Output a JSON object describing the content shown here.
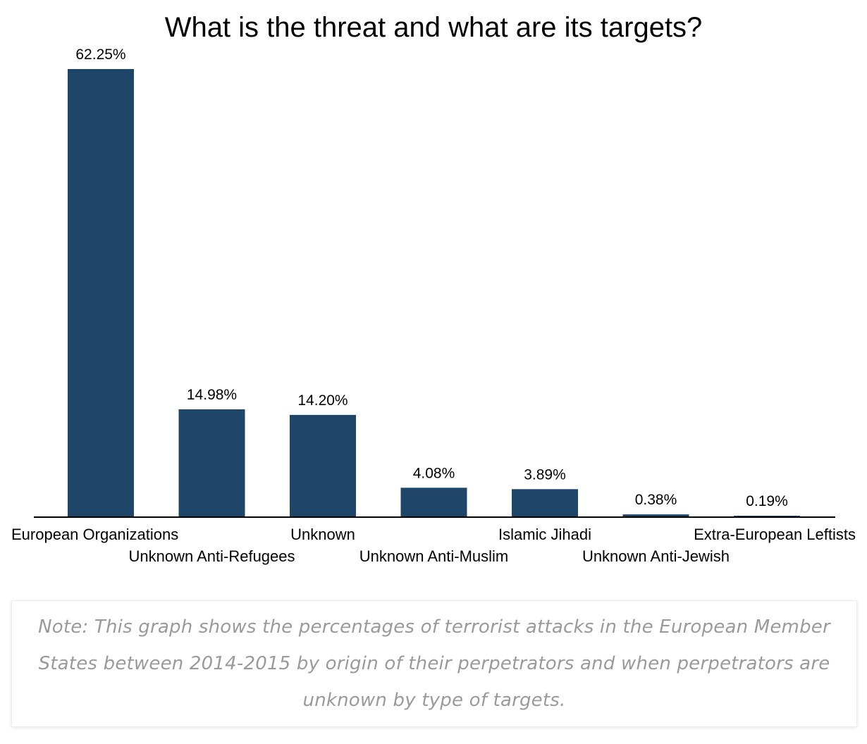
{
  "chart_data": {
    "type": "bar",
    "title": "What is the threat and what are its targets?",
    "categories": [
      "European Organizations",
      "Unknown Anti-Refugees",
      "Unknown",
      "Unknown Anti-Muslim",
      "Islamic Jihadi",
      "Unknown Anti-Jewish",
      "Extra-European Leftists"
    ],
    "values": [
      62.25,
      14.98,
      14.2,
      4.08,
      3.89,
      0.38,
      0.19
    ],
    "data_labels": [
      "62.25%",
      "14.98%",
      "14.20%",
      "4.08%",
      "3.89%",
      "0.38%",
      "0.19%"
    ],
    "xlabel": "",
    "ylabel": "",
    "ylim": [
      0,
      62.25
    ],
    "grid": false,
    "legend": "none",
    "bar_color": "#1f4569"
  },
  "note": {
    "text": "Note: This graph shows the percentages of terrorist attacks in the European Member States between 2014-2015 by origin of their perpetrators and when perpetrators are unknown by type of targets."
  }
}
